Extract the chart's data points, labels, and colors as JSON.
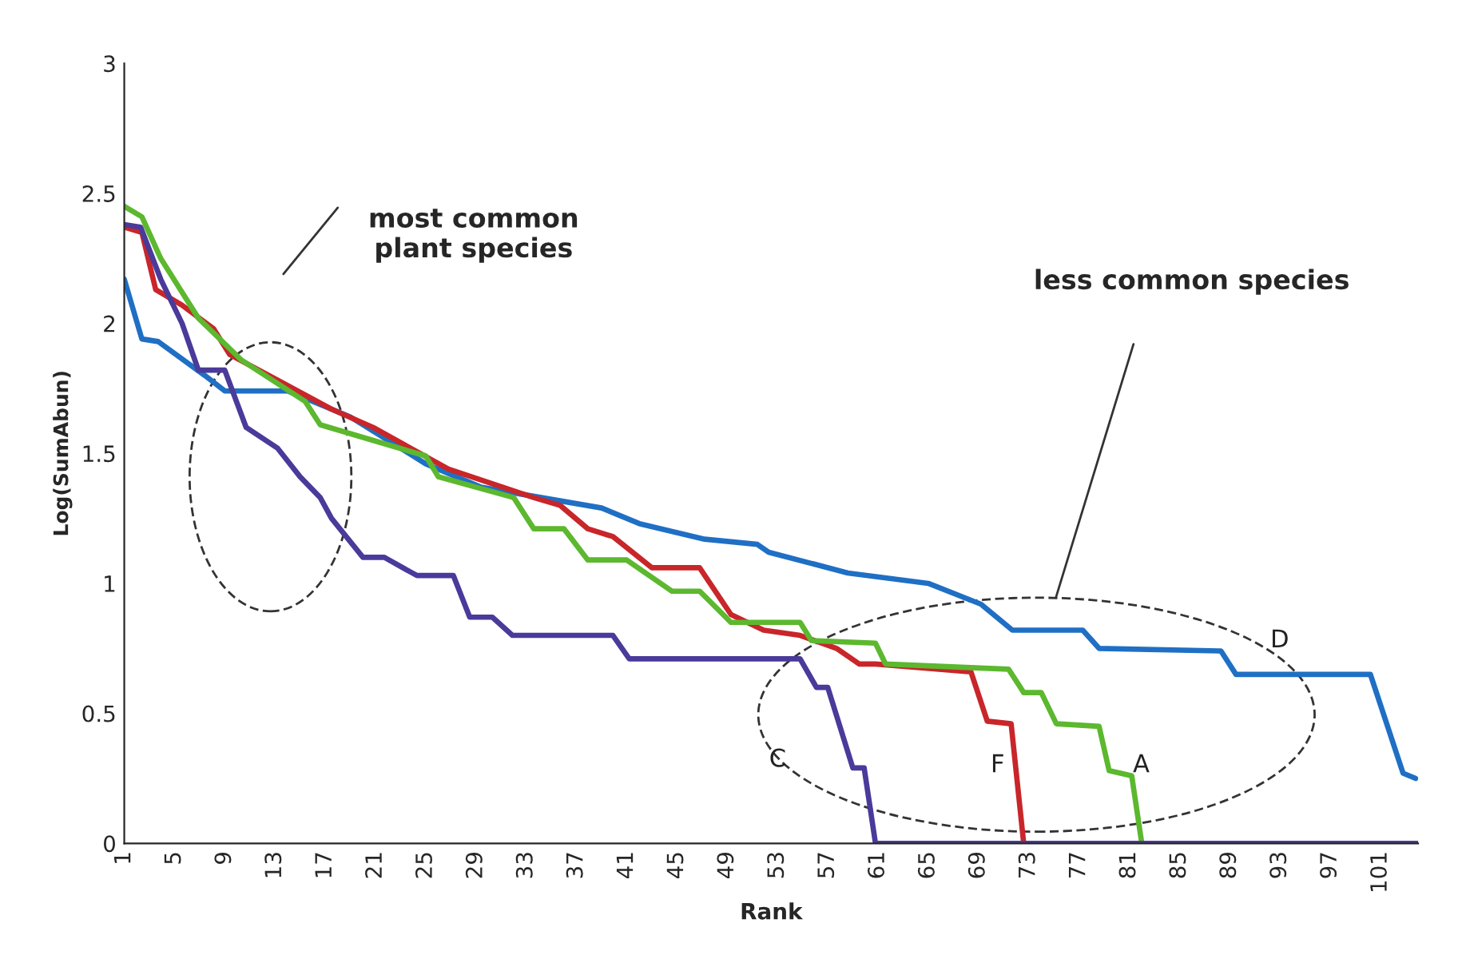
{
  "chart_data": {
    "type": "line",
    "xlabel": "Rank",
    "ylabel": "Log(SumAbun)",
    "xlim": [
      1,
      104
    ],
    "xticks": [
      1,
      5,
      9,
      13,
      17,
      21,
      25,
      29,
      33,
      37,
      41,
      45,
      49,
      53,
      57,
      61,
      65,
      69,
      73,
      77,
      81,
      85,
      89,
      93,
      97,
      101
    ],
    "ylim": [
      0,
      3
    ],
    "yticks": [
      0,
      0.5,
      1,
      1.5,
      2,
      2.5,
      3
    ],
    "grid": false,
    "legend": false,
    "series": [
      {
        "name": "D",
        "color": "#1f6fc4",
        "x": [
          1,
          2.4,
          3.7,
          7.4,
          9,
          14,
          19,
          25,
          29.4,
          39,
          42,
          47.2,
          51.4,
          52.3,
          58.6,
          65,
          69.2,
          71.7,
          77.3,
          78.6,
          88.3,
          89.5,
          100.2,
          102.8,
          103.8
        ],
        "values": [
          2.17,
          1.94,
          1.93,
          1.8,
          1.74,
          1.74,
          1.64,
          1.46,
          1.37,
          1.29,
          1.23,
          1.17,
          1.15,
          1.12,
          1.04,
          1.0,
          0.92,
          0.82,
          0.82,
          0.75,
          0.74,
          0.65,
          0.65,
          0.27,
          0.25
        ]
      },
      {
        "name": "F",
        "color": "#c8262a",
        "x": [
          1,
          2.4,
          3.5,
          5.6,
          8.1,
          9.4,
          12.5,
          17.5,
          20.8,
          26.8,
          33.6,
          35.7,
          37.9,
          39.9,
          43,
          46.8,
          49.3,
          51.9,
          54.8,
          57.7,
          59.5,
          60.8,
          68.4,
          69.7,
          71.6,
          72.6
        ],
        "values": [
          2.37,
          2.35,
          2.13,
          2.07,
          1.98,
          1.88,
          1.8,
          1.67,
          1.6,
          1.44,
          1.33,
          1.3,
          1.21,
          1.18,
          1.06,
          1.06,
          0.88,
          0.82,
          0.8,
          0.75,
          0.69,
          0.69,
          0.66,
          0.47,
          0.46,
          0
        ]
      },
      {
        "name": "A",
        "color": "#5cb82e",
        "x": [
          1,
          2.4,
          3.9,
          5.2,
          6.9,
          10.3,
          15.4,
          16.6,
          20.8,
          25,
          26,
          32,
          33.6,
          36,
          37.9,
          41,
          44.6,
          46.8,
          49.3,
          54.8,
          55.7,
          60.8,
          61.6,
          71.4,
          72.6,
          74,
          75.2,
          78.6,
          79.4,
          81.2,
          82
        ],
        "values": [
          2.45,
          2.41,
          2.25,
          2.15,
          2.02,
          1.86,
          1.7,
          1.61,
          1.55,
          1.49,
          1.41,
          1.33,
          1.21,
          1.21,
          1.09,
          1.09,
          0.97,
          0.97,
          0.85,
          0.85,
          0.78,
          0.77,
          0.69,
          0.67,
          0.58,
          0.58,
          0.46,
          0.45,
          0.28,
          0.26,
          0
        ]
      },
      {
        "name": "C",
        "color": "#4a3a9a",
        "x": [
          1,
          2.3,
          3.9,
          5.6,
          6.9,
          9,
          10.7,
          13.2,
          15,
          16.6,
          17.5,
          20,
          21.7,
          24.3,
          27.2,
          28.5,
          30.3,
          31.9,
          39.9,
          41.2,
          49.7,
          54.8,
          56.1,
          57,
          59,
          59.9,
          60.8,
          104
        ],
        "values": [
          2.38,
          2.37,
          2.17,
          2.0,
          1.82,
          1.82,
          1.6,
          1.52,
          1.41,
          1.33,
          1.25,
          1.1,
          1.1,
          1.03,
          1.03,
          0.87,
          0.87,
          0.8,
          0.8,
          0.71,
          0.71,
          0.71,
          0.6,
          0.6,
          0.29,
          0.29,
          0,
          0
        ]
      }
    ],
    "annotations": [
      "most common\nplant species",
      "less common species"
    ]
  }
}
